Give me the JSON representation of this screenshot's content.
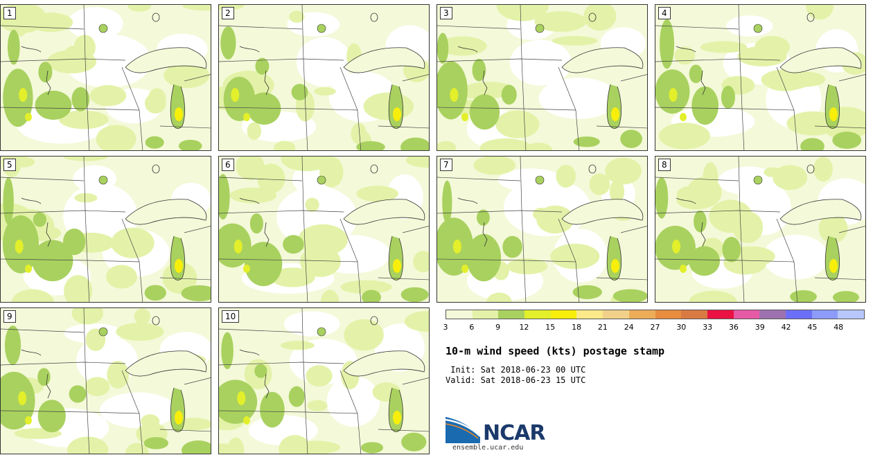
{
  "stamps": [
    {
      "label": "1"
    },
    {
      "label": "2"
    },
    {
      "label": "3"
    },
    {
      "label": "4"
    },
    {
      "label": "5"
    },
    {
      "label": "6"
    },
    {
      "label": "7"
    },
    {
      "label": "8"
    },
    {
      "label": "9"
    },
    {
      "label": "10"
    }
  ],
  "colorbar": {
    "colors": [
      "#f4f9d9",
      "#e3f2a8",
      "#a9d15f",
      "#e2ef2a",
      "#f7ee0c",
      "#fbe98a",
      "#f1d18a",
      "#ecac58",
      "#e88c3e",
      "#d87a42",
      "#ea1242",
      "#e65aa5",
      "#9e72b0",
      "#6b6ff7",
      "#8c9cf8",
      "#b8c7fb"
    ],
    "ticks": [
      "3",
      "6",
      "9",
      "12",
      "15",
      "18",
      "21",
      "24",
      "27",
      "30",
      "33",
      "36",
      "39",
      "42",
      "45",
      "48"
    ]
  },
  "title": "10-m wind speed (kts) postage stamp",
  "init": " Init: Sat 2018-06-23 00 UTC",
  "valid": "Valid: Sat 2018-06-23 15 UTC",
  "logo": {
    "name": "NCAR",
    "url": "ensemble.ucar.edu"
  }
}
